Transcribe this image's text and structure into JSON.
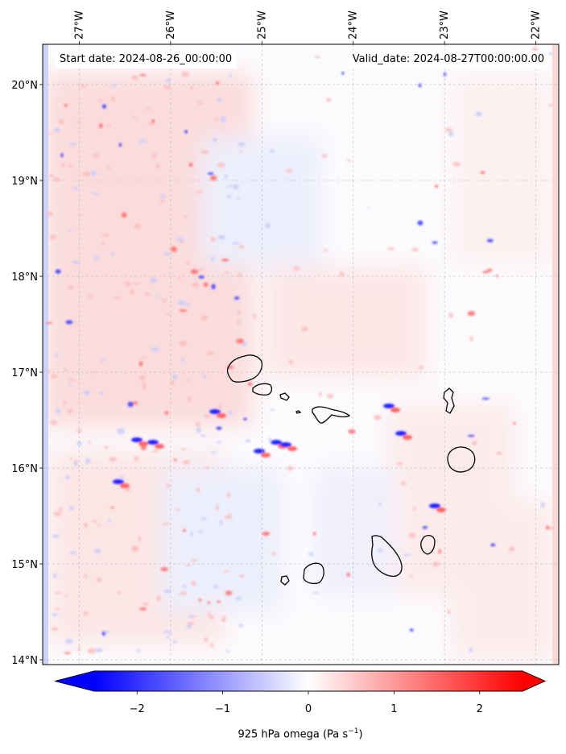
{
  "header": {
    "start_date": "Start date: 2024-08-26_00:00:00",
    "valid_date": "Valid_date: 2024-08-27T00:00:00.00"
  },
  "axes": {
    "lon_labels": [
      "27°W",
      "26°W",
      "25°W",
      "24°W",
      "23°W",
      "22°W"
    ],
    "lat_labels": [
      "20°N",
      "19°N",
      "18°N",
      "17°N",
      "16°N",
      "15°N",
      "14°N"
    ],
    "lon_values": [
      -27,
      -26,
      -25,
      -24,
      -23,
      -22
    ],
    "lat_values": [
      20,
      19,
      18,
      17,
      16,
      15,
      14
    ],
    "lon_range": [
      -27.4,
      -21.75
    ],
    "lat_range": [
      13.95,
      20.42
    ],
    "gridlines": true
  },
  "colorbar": {
    "title": "925 hPa omega (Pa s",
    "title_sup": "−1",
    "title_close": ")",
    "tick_labels": [
      "−2",
      "−1",
      "0",
      "1",
      "2"
    ],
    "tick_values": [
      -2,
      -1,
      0,
      1,
      2
    ],
    "range": [
      -2.5,
      2.5
    ],
    "colormap": "bwr",
    "extend": "both",
    "min_color": "#0000ff",
    "mid_color": "#ffffff",
    "max_color": "#ff0000"
  },
  "map": {
    "islands": [
      "santo-antao",
      "sao-vicente",
      "santa-luzia",
      "branco",
      "sao-nicolau",
      "sal",
      "boa-vista",
      "maio",
      "santiago",
      "fogo",
      "brava"
    ]
  }
}
